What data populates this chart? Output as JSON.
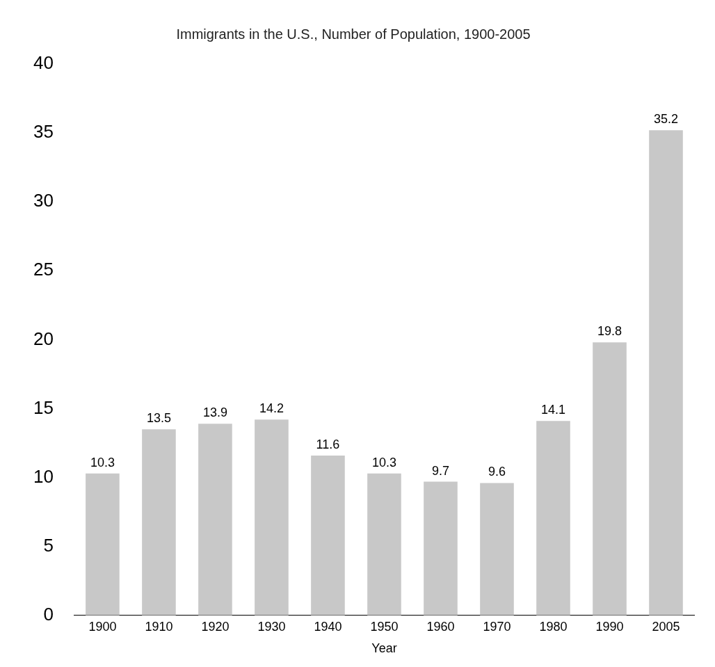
{
  "chart_data": {
    "type": "bar",
    "title": "Immigrants in the U.S., Number of Population, 1900-2005",
    "xlabel": "Year",
    "categories": [
      "1900",
      "1910",
      "1920",
      "1930",
      "1940",
      "1950",
      "1960",
      "1970",
      "1980",
      "1990",
      "2005"
    ],
    "values": [
      10.3,
      13.5,
      13.9,
      14.2,
      11.6,
      10.3,
      9.7,
      9.6,
      14.1,
      19.8,
      35.2
    ],
    "color": "#c8c8c8",
    "ylim": [
      0,
      40
    ],
    "yticks": [
      0,
      5,
      10,
      15,
      20,
      25,
      30,
      35,
      40
    ],
    "grid": false,
    "data_labels": true
  }
}
